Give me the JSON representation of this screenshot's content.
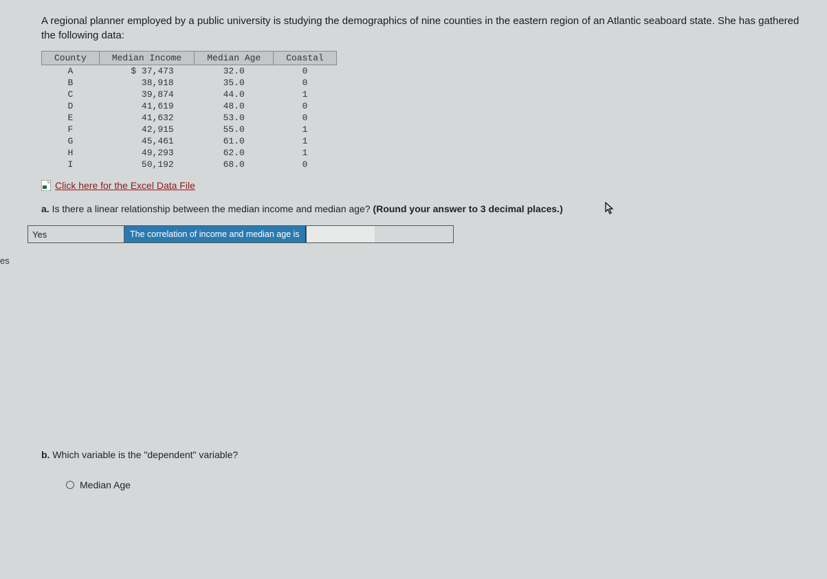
{
  "intro": "A regional planner employed by a public university is studying the demographics of nine counties in the eastern region of an Atlantic seaboard state. She has gathered the following data:",
  "table": {
    "headers": [
      "County",
      "Median Income",
      "Median Age",
      "Coastal"
    ],
    "rows": [
      {
        "county": "A",
        "income": "$ 37,473",
        "age": "32.0",
        "coastal": "0"
      },
      {
        "county": "B",
        "income": "38,918",
        "age": "35.0",
        "coastal": "0"
      },
      {
        "county": "C",
        "income": "39,874",
        "age": "44.0",
        "coastal": "1"
      },
      {
        "county": "D",
        "income": "41,619",
        "age": "48.0",
        "coastal": "0"
      },
      {
        "county": "E",
        "income": "41,632",
        "age": "53.0",
        "coastal": "0"
      },
      {
        "county": "F",
        "income": "42,915",
        "age": "55.0",
        "coastal": "1"
      },
      {
        "county": "G",
        "income": "45,461",
        "age": "61.0",
        "coastal": "1"
      },
      {
        "county": "H",
        "income": "49,293",
        "age": "62.0",
        "coastal": "1"
      },
      {
        "county": "I",
        "income": "50,192",
        "age": "68.0",
        "coastal": "0"
      }
    ]
  },
  "excel_link": "Click here for the Excel Data File",
  "question_a": {
    "prefix": "a. ",
    "text": "Is there a linear relationship between the median income and median age? ",
    "note": "(Round your answer to 3 decimal places.)"
  },
  "side_label": "es",
  "answer_a": {
    "dropdown_value": "Yes",
    "label": "The correlation of income and median age is",
    "input_value": ""
  },
  "question_b": {
    "prefix": "b. ",
    "text": "Which variable is the \"dependent\" variable?"
  },
  "option_b1": "Median Age",
  "colors": {
    "page_bg": "#d5d8d9",
    "header_bg": "#c4c7c8",
    "link_color": "#8b1a1a",
    "label_bg": "#2a7ab0",
    "label_fg": "#ffffff",
    "border": "#555555"
  }
}
